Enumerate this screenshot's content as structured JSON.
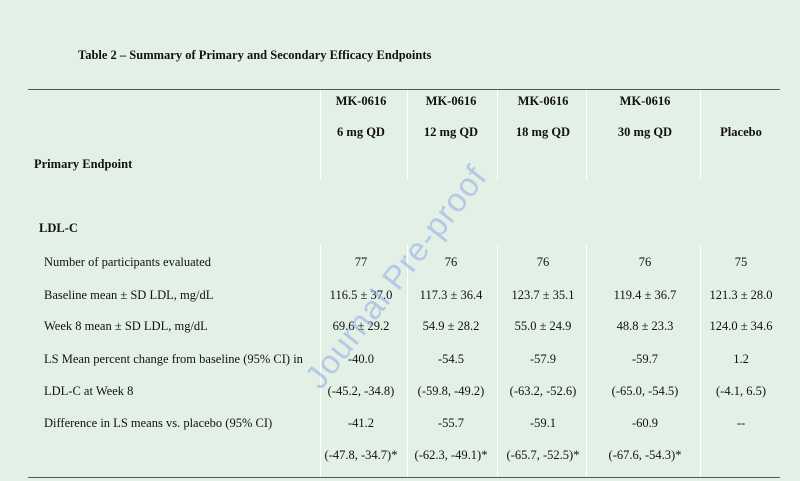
{
  "table": {
    "caption": "Table 2 – Summary of Primary and Secondary Efficacy Endpoints",
    "columns": [
      {
        "line1": "MK-0616",
        "line2": "6 mg QD"
      },
      {
        "line1": "MK-0616",
        "line2": "12 mg QD"
      },
      {
        "line1": "MK-0616",
        "line2": "18 mg QD"
      },
      {
        "line1": "MK-0616",
        "line2": "30 mg QD"
      },
      {
        "line1": "",
        "line2": "Placebo"
      }
    ],
    "section_primary": "Primary Endpoint",
    "subsection_ldl": "LDL-C",
    "rows": [
      {
        "label": "Number of participants evaluated",
        "values": [
          "77",
          "76",
          "76",
          "76",
          "75"
        ]
      },
      {
        "label": "Baseline mean ± SD LDL, mg/dL",
        "values": [
          "116.5 ± 37.0",
          "117.3 ± 36.4",
          "123.7 ± 35.1",
          "119.4 ± 36.7",
          "121.3 ± 28.0"
        ]
      },
      {
        "label": "Week 8 mean ± SD LDL, mg/dL",
        "values": [
          "69.6 ± 29.2",
          "54.9 ± 28.2",
          "55.0 ± 24.9",
          "48.8 ± 23.3",
          "124.0 ± 34.6"
        ]
      },
      {
        "label": "LS Mean percent change from baseline (95% CI) in",
        "values": [
          "-40.0",
          "-54.5",
          "-57.9",
          "-59.7",
          "1.2"
        ]
      },
      {
        "label": "LDL-C at Week 8",
        "values": [
          "(-45.2, -34.8)",
          "(-59.8, -49.2)",
          "(-63.2, -52.6)",
          "(-65.0, -54.5)",
          "(-4.1, 6.5)"
        ]
      },
      {
        "label": "Difference in LS means vs. placebo (95% CI)",
        "values": [
          "-41.2",
          "-55.7",
          "-59.1",
          "-60.9",
          "--"
        ]
      },
      {
        "label": "",
        "values": [
          "(-47.8, -34.7)*",
          "(-62.3, -49.1)*",
          "(-65.7, -52.5)*",
          "(-67.6, -54.3)*",
          ""
        ]
      }
    ]
  },
  "watermark": "Journal Pre-proof"
}
